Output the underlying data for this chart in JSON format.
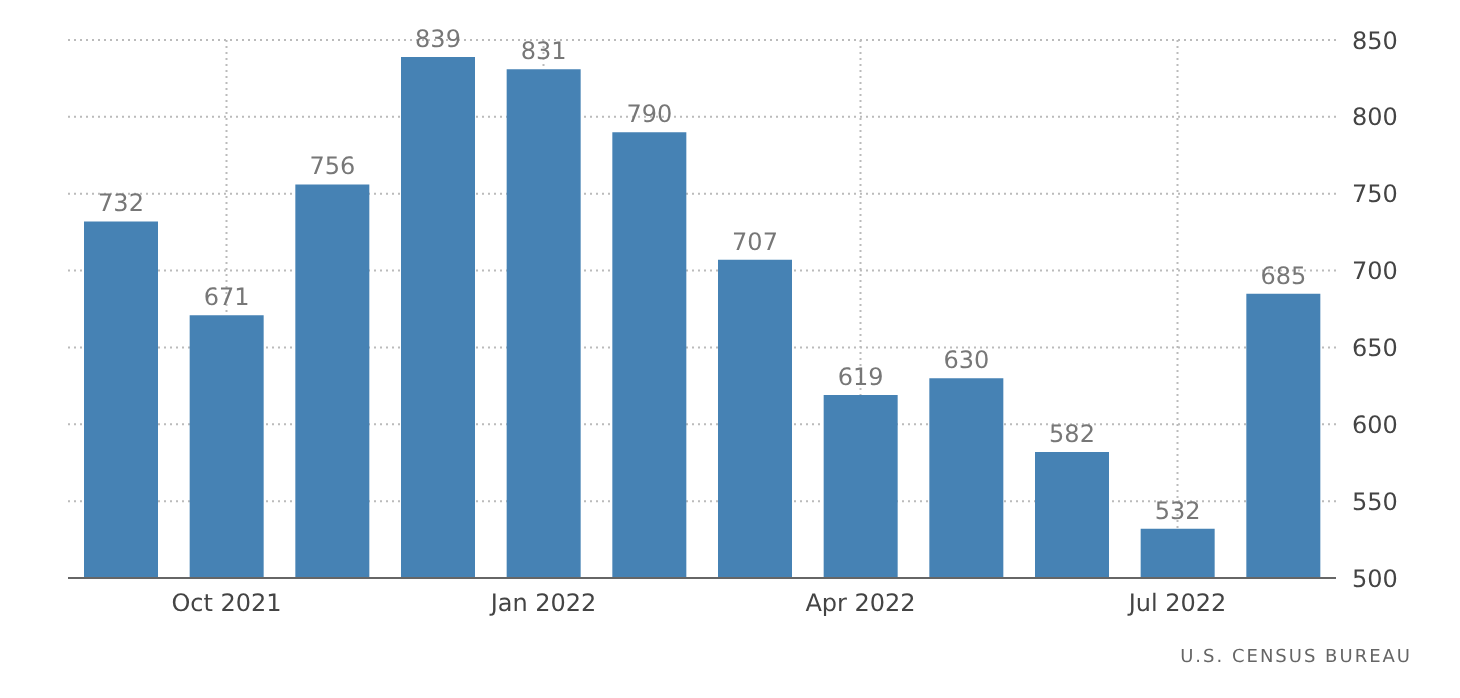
{
  "chart_data": {
    "type": "bar",
    "categories": [
      null,
      "Oct 2021",
      null,
      null,
      "Jan 2022",
      null,
      null,
      "Apr 2022",
      null,
      null,
      "Jul 2022",
      null
    ],
    "values": [
      732,
      671,
      756,
      839,
      831,
      790,
      707,
      619,
      630,
      582,
      532,
      685
    ],
    "color": "#4682b4",
    "ylim": [
      500,
      850
    ],
    "yticks": [
      500,
      550,
      600,
      650,
      700,
      750,
      800,
      850
    ],
    "grid": true,
    "data_labels": true,
    "annotations": [
      "U.S. CENSUS BUREAU"
    ]
  }
}
